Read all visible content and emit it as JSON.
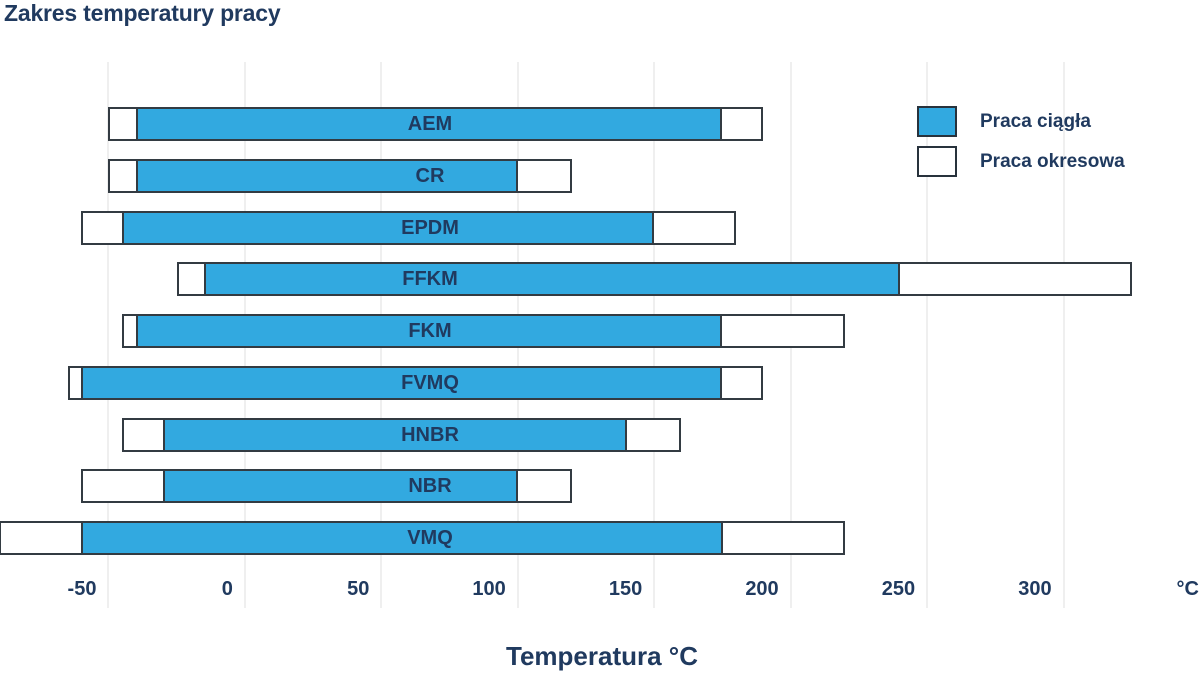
{
  "title": "Zakres temperatury pracy",
  "colors": {
    "accent_blue": "#32A9E0",
    "navy_text": "#203A5F",
    "bar_border": "#333B42",
    "gridline": "#EFEFEF",
    "background": "#FFFFFF"
  },
  "legend": {
    "items": [
      {
        "label": "Praca ciągła",
        "swatch": "blue"
      },
      {
        "label": "Praca okresowa",
        "swatch": "white"
      }
    ]
  },
  "chart_data": {
    "type": "bar",
    "orientation": "horizontal-range",
    "title": "Zakres temperatury pracy",
    "xlabel": "Temperatura °C",
    "unit_label": "°C",
    "xlim": [
      -90,
      350
    ],
    "ticks": [
      -50,
      0,
      50,
      100,
      150,
      200,
      250,
      300
    ],
    "grid": "vertical-light",
    "legend_position": "top-right",
    "series_meaning": {
      "ciagla": "Praca ciągła (continuous service range, blue segment)",
      "okresowa": "Praca okresowa (intermittent service range, white outer bar)"
    },
    "materials": [
      {
        "name": "AEM",
        "okresowa": [
          -50,
          190
        ],
        "ciagla": [
          -40,
          175
        ]
      },
      {
        "name": "CR",
        "okresowa": [
          -50,
          120
        ],
        "ciagla": [
          -40,
          100
        ]
      },
      {
        "name": "EPDM",
        "okresowa": [
          -60,
          180
        ],
        "ciagla": [
          -45,
          150
        ]
      },
      {
        "name": "FFKM",
        "okresowa": [
          -25,
          325
        ],
        "ciagla": [
          -15,
          240
        ]
      },
      {
        "name": "FKM",
        "okresowa": [
          -45,
          220
        ],
        "ciagla": [
          -40,
          175
        ]
      },
      {
        "name": "FVMQ",
        "okresowa": [
          -65,
          190
        ],
        "ciagla": [
          -60,
          175
        ]
      },
      {
        "name": "HNBR",
        "okresowa": [
          -45,
          160
        ],
        "ciagla": [
          -30,
          140
        ]
      },
      {
        "name": "NBR",
        "okresowa": [
          -60,
          120
        ],
        "ciagla": [
          -30,
          100
        ]
      },
      {
        "name": "VMQ",
        "okresowa": [
          -90,
          220
        ],
        "ciagla": [
          -60,
          175
        ]
      }
    ]
  }
}
